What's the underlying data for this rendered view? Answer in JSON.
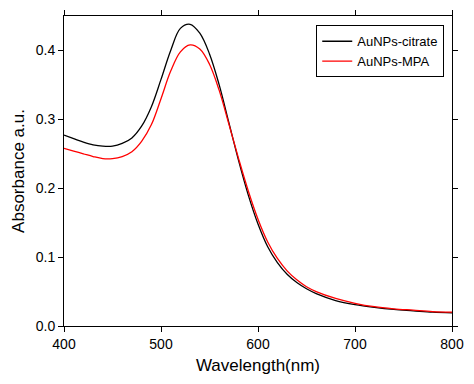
{
  "chart_data": {
    "type": "line",
    "x_label": "Wavelength(nm)",
    "y_label": "Absorbance a.u.",
    "x": [
      400,
      410,
      420,
      430,
      440,
      450,
      460,
      470,
      480,
      490,
      500,
      510,
      520,
      530,
      540,
      550,
      560,
      570,
      580,
      590,
      600,
      610,
      620,
      630,
      640,
      650,
      660,
      680,
      700,
      720,
      740,
      760,
      780,
      800
    ],
    "series": [
      {
        "name": "AuNPs-citrate",
        "color": "#000000",
        "values": [
          0.277,
          0.272,
          0.267,
          0.263,
          0.261,
          0.261,
          0.265,
          0.273,
          0.29,
          0.318,
          0.358,
          0.4,
          0.432,
          0.438,
          0.425,
          0.395,
          0.35,
          0.295,
          0.24,
          0.19,
          0.148,
          0.115,
          0.092,
          0.075,
          0.063,
          0.054,
          0.047,
          0.037,
          0.031,
          0.027,
          0.024,
          0.022,
          0.02,
          0.019
        ]
      },
      {
        "name": "AuNPs-MPA",
        "color": "#ff0000",
        "values": [
          0.258,
          0.254,
          0.25,
          0.246,
          0.243,
          0.243,
          0.246,
          0.253,
          0.268,
          0.292,
          0.33,
          0.37,
          0.398,
          0.408,
          0.402,
          0.38,
          0.342,
          0.293,
          0.243,
          0.196,
          0.155,
          0.122,
          0.098,
          0.08,
          0.067,
          0.057,
          0.05,
          0.04,
          0.033,
          0.028,
          0.025,
          0.023,
          0.021,
          0.02
        ]
      }
    ],
    "xlim": [
      400,
      800
    ],
    "xticks": [
      400,
      500,
      600,
      700,
      800
    ],
    "ylim": [
      0,
      0.45
    ],
    "yticks": [
      {
        "value": 0,
        "label": "0.0"
      },
      0.1,
      0.2,
      0.3,
      0.4
    ],
    "grid": false,
    "legend": "upper right"
  }
}
